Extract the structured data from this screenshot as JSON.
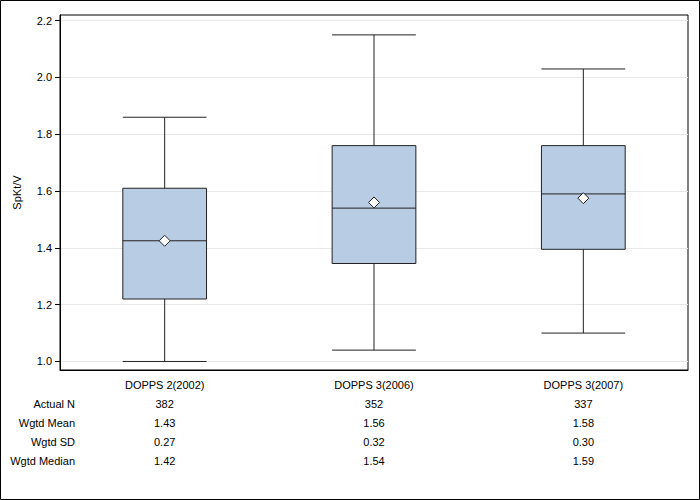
{
  "chart_data": {
    "type": "boxplot",
    "y_label": "SpKt/V",
    "categories": [
      "DOPPS 2(2002)",
      "DOPPS 3(2006)",
      "DOPPS 3(2007)"
    ],
    "boxes": [
      {
        "low": 1.0,
        "q1": 1.22,
        "median": 1.425,
        "q3": 1.61,
        "high": 1.86
      },
      {
        "low": 1.04,
        "q1": 1.345,
        "median": 1.54,
        "q3": 1.76,
        "high": 2.15
      },
      {
        "low": 1.1,
        "q1": 1.395,
        "median": 1.59,
        "q3": 1.76,
        "high": 2.03
      }
    ],
    "means": [
      1.425,
      1.56,
      1.575
    ],
    "color": "#b8cce4",
    "marker": "diamond",
    "ylim": [
      0.97,
      2.22
    ],
    "yticks": [
      {
        "value": 1,
        "label": "1.0"
      },
      1.2,
      1.4,
      1.6,
      1.8,
      {
        "value": 2,
        "label": "2.0"
      },
      2.2
    ],
    "grid": true
  },
  "table": {
    "rows": [
      {
        "label": "Actual N",
        "values": [
          "382",
          "352",
          "337"
        ]
      },
      {
        "label": "Wgtd Mean",
        "values": [
          "1.43",
          "1.56",
          "1.58"
        ]
      },
      {
        "label": "Wgtd SD",
        "values": [
          "0.27",
          "0.32",
          "0.30"
        ]
      },
      {
        "label": "Wgtd Median",
        "values": [
          "1.42",
          "1.54",
          "1.59"
        ]
      }
    ]
  }
}
